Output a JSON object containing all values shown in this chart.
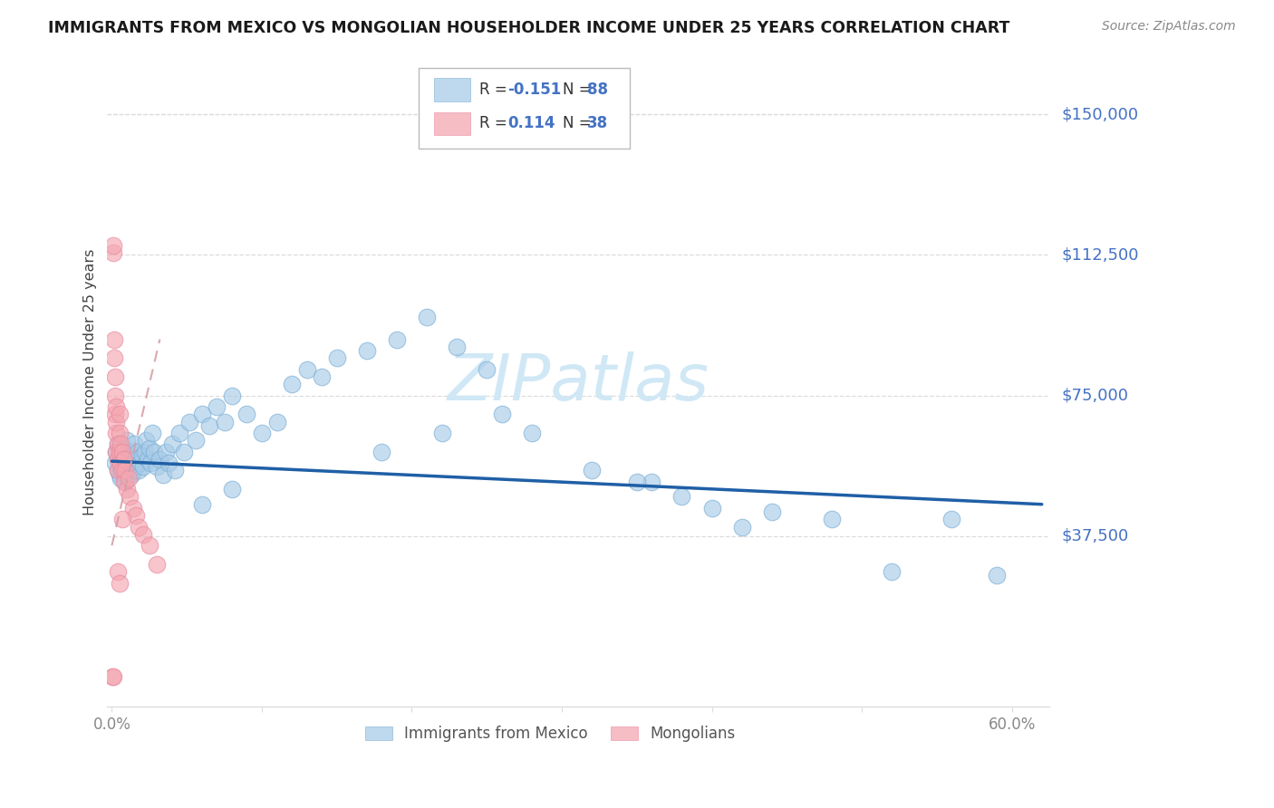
{
  "title": "IMMIGRANTS FROM MEXICO VS MONGOLIAN HOUSEHOLDER INCOME UNDER 25 YEARS CORRELATION CHART",
  "source": "Source: ZipAtlas.com",
  "ylabel": "Householder Income Under 25 years",
  "ytick_labels": [
    "$150,000",
    "$112,500",
    "$75,000",
    "$37,500"
  ],
  "ytick_values": [
    150000,
    112500,
    75000,
    37500
  ],
  "ylim": [
    -8000,
    165000
  ],
  "xlim": [
    -0.003,
    0.625
  ],
  "legend_blue_r": "-0.151",
  "legend_blue_n": "88",
  "legend_pink_r": "0.114",
  "legend_pink_n": "38",
  "blue_color": "#a8cce8",
  "pink_color": "#f4a7b0",
  "line_blue_color": "#1f5fa6",
  "line_pink_color": "#d4a0a8",
  "watermark_text": "ZIPatlas",
  "watermark_color": "#d0e8f5",
  "title_color": "#1a1a1a",
  "source_color": "#888888",
  "ylabel_color": "#444444",
  "grid_color": "#dddddd",
  "tick_color": "#888888",
  "right_label_color": "#4472c4",
  "legend_r_color": "#333333",
  "legend_n_color": "#4472c4",
  "mexico_x": [
    0.002,
    0.003,
    0.004,
    0.004,
    0.005,
    0.005,
    0.006,
    0.006,
    0.006,
    0.007,
    0.007,
    0.007,
    0.008,
    0.008,
    0.009,
    0.009,
    0.009,
    0.01,
    0.01,
    0.01,
    0.011,
    0.011,
    0.012,
    0.012,
    0.013,
    0.013,
    0.014,
    0.015,
    0.015,
    0.016,
    0.016,
    0.017,
    0.018,
    0.019,
    0.02,
    0.021,
    0.022,
    0.023,
    0.024,
    0.025,
    0.026,
    0.027,
    0.028,
    0.03,
    0.032,
    0.034,
    0.036,
    0.038,
    0.04,
    0.042,
    0.045,
    0.048,
    0.052,
    0.056,
    0.06,
    0.065,
    0.07,
    0.075,
    0.08,
    0.09,
    0.1,
    0.11,
    0.12,
    0.13,
    0.14,
    0.15,
    0.17,
    0.19,
    0.21,
    0.23,
    0.25,
    0.28,
    0.32,
    0.36,
    0.4,
    0.44,
    0.48,
    0.52,
    0.56,
    0.59,
    0.35,
    0.42,
    0.38,
    0.26,
    0.22,
    0.18,
    0.08,
    0.06
  ],
  "mexico_y": [
    57000,
    60000,
    55000,
    62000,
    58000,
    54000,
    56000,
    59000,
    53000,
    57000,
    61000,
    55000,
    58000,
    54000,
    60000,
    56000,
    52000,
    57000,
    55000,
    63000,
    59000,
    54000,
    58000,
    56000,
    60000,
    54000,
    57000,
    62000,
    55000,
    58000,
    56000,
    60000,
    55000,
    57000,
    59000,
    56000,
    60000,
    63000,
    58000,
    61000,
    57000,
    65000,
    60000,
    56000,
    58000,
    54000,
    60000,
    57000,
    62000,
    55000,
    65000,
    60000,
    68000,
    63000,
    70000,
    67000,
    72000,
    68000,
    75000,
    70000,
    65000,
    68000,
    78000,
    82000,
    80000,
    85000,
    87000,
    90000,
    96000,
    88000,
    82000,
    65000,
    55000,
    52000,
    45000,
    44000,
    42000,
    28000,
    42000,
    27000,
    52000,
    40000,
    48000,
    70000,
    65000,
    60000,
    50000,
    46000
  ],
  "mongolia_x": [
    0.0005,
    0.0008,
    0.001,
    0.001,
    0.0015,
    0.0015,
    0.002,
    0.002,
    0.002,
    0.003,
    0.003,
    0.003,
    0.003,
    0.004,
    0.004,
    0.004,
    0.005,
    0.005,
    0.005,
    0.006,
    0.006,
    0.007,
    0.007,
    0.008,
    0.008,
    0.009,
    0.01,
    0.011,
    0.012,
    0.014,
    0.016,
    0.018,
    0.021,
    0.025,
    0.03,
    0.004,
    0.005,
    0.007
  ],
  "mongolia_y": [
    0,
    0,
    113000,
    115000,
    85000,
    90000,
    70000,
    75000,
    80000,
    65000,
    68000,
    72000,
    60000,
    58000,
    62000,
    55000,
    60000,
    65000,
    70000,
    57000,
    62000,
    55000,
    60000,
    58000,
    52000,
    55000,
    50000,
    53000,
    48000,
    45000,
    43000,
    40000,
    38000,
    35000,
    30000,
    28000,
    25000,
    42000
  ],
  "blue_line_x": [
    0.0,
    0.62
  ],
  "blue_line_y": [
    57500,
    46000
  ],
  "pink_line_x": [
    0.0,
    0.032
  ],
  "pink_line_y": [
    35000,
    90000
  ]
}
